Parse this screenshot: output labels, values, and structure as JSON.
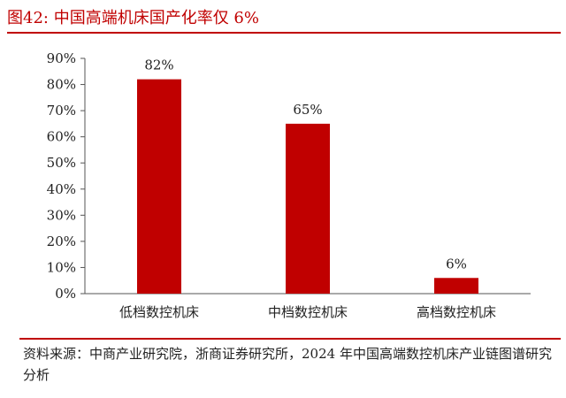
{
  "figure": {
    "title": "图42:  中国高端机床国产化率仅 6%",
    "source": "资料来源：中商产业研究院，浙商证券研究所，2024 年中国高端数控机床产业链图谱研究分析"
  },
  "colors": {
    "bar": "#c00000",
    "accent": "#c00000"
  },
  "chart_data": {
    "type": "bar",
    "categories": [
      "低档数控机床",
      "中档数控机床",
      "高档数控机床"
    ],
    "values": [
      82,
      65,
      6
    ],
    "data_labels": [
      "82%",
      "65%",
      "6%"
    ],
    "yticks": [
      "0%",
      "10%",
      "20%",
      "30%",
      "40%",
      "50%",
      "60%",
      "70%",
      "80%",
      "90%"
    ],
    "ylim": [
      0,
      90
    ],
    "grid": false,
    "legend": "none"
  }
}
